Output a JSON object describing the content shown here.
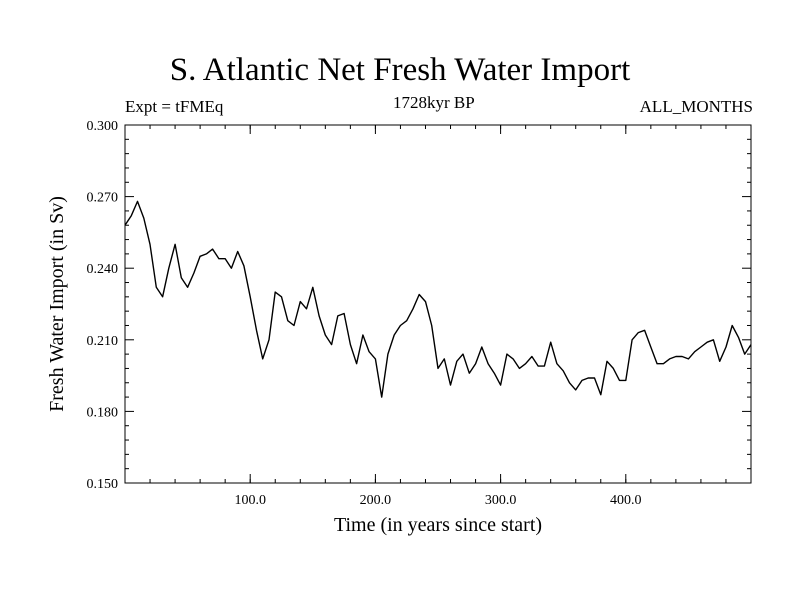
{
  "chart_data": {
    "type": "line",
    "title": "S. Atlantic Net Fresh Water Import",
    "subtitle_left": "Expt = tFMEq",
    "subtitle_center": "1728kyr BP",
    "subtitle_right": "ALL_MONTHS",
    "xlabel": "Time (in years since start)",
    "ylabel": "Fresh Water Import (in Sv)",
    "xlim": [
      0,
      500
    ],
    "ylim": [
      0.15,
      0.3
    ],
    "x_ticks": [
      100,
      200,
      300,
      400
    ],
    "x_tick_labels": [
      "100.0",
      "200.0",
      "300.0",
      "400.0"
    ],
    "y_ticks": [
      0.15,
      0.18,
      0.21,
      0.24,
      0.27,
      0.3
    ],
    "y_tick_labels": [
      "0.150",
      "0.180",
      "0.210",
      "0.240",
      "0.270",
      "0.300"
    ],
    "grid": false,
    "line_color": "#000000",
    "series": [
      {
        "name": "Fresh Water Import",
        "x_start": 0,
        "x_step": 5,
        "x_end": 500,
        "values": [
          0.258,
          0.262,
          0.268,
          0.261,
          0.25,
          0.232,
          0.228,
          0.24,
          0.25,
          0.236,
          0.232,
          0.238,
          0.245,
          0.246,
          0.248,
          0.244,
          0.244,
          0.24,
          0.247,
          0.241,
          0.228,
          0.214,
          0.202,
          0.21,
          0.23,
          0.228,
          0.218,
          0.216,
          0.226,
          0.223,
          0.232,
          0.22,
          0.212,
          0.208,
          0.22,
          0.221,
          0.208,
          0.2,
          0.212,
          0.205,
          0.202,
          0.186,
          0.204,
          0.212,
          0.216,
          0.218,
          0.223,
          0.229,
          0.226,
          0.216,
          0.198,
          0.202,
          0.191,
          0.201,
          0.204,
          0.196,
          0.2,
          0.207,
          0.2,
          0.196,
          0.191,
          0.204,
          0.202,
          0.198,
          0.2,
          0.203,
          0.199,
          0.199,
          0.209,
          0.2,
          0.197,
          0.192,
          0.189,
          0.193,
          0.194,
          0.194,
          0.187,
          0.201,
          0.198,
          0.193,
          0.193,
          0.21,
          0.213,
          0.214,
          0.207,
          0.2,
          0.2,
          0.202,
          0.203,
          0.203,
          0.202,
          0.205,
          0.207,
          0.209,
          0.21,
          0.201,
          0.207,
          0.216,
          0.211,
          0.204,
          0.208
        ]
      }
    ]
  }
}
